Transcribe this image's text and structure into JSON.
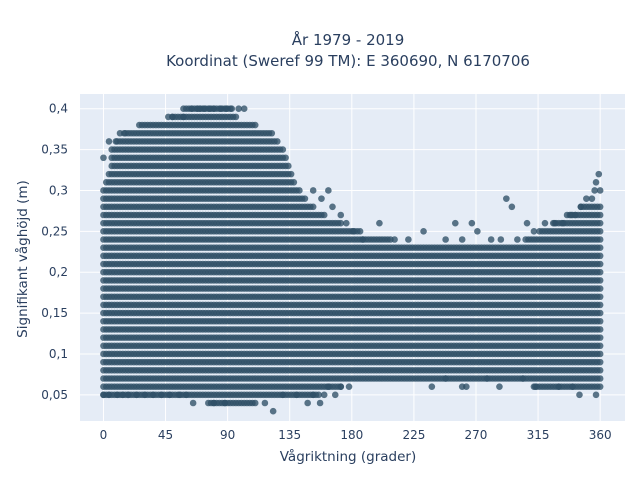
{
  "chart_data": {
    "type": "scatter",
    "title_line1": "År 1979 - 2019",
    "title_line2": "Koordinat (Sweref 99 TM): E 360690, N 6170706",
    "xlabel": "Vågriktning (grader)",
    "ylabel": "Signifikant våghöjd (m)",
    "xlim": [
      -17,
      378
    ],
    "ylim": [
      0.018,
      0.418
    ],
    "x_ticks": [
      0,
      45,
      90,
      135,
      180,
      225,
      270,
      315,
      360
    ],
    "x_tick_labels": [
      "0",
      "45",
      "90",
      "135",
      "180",
      "225",
      "270",
      "315",
      "360"
    ],
    "y_ticks": [
      0.05,
      0.1,
      0.15,
      0.2,
      0.25,
      0.3,
      0.35,
      0.4
    ],
    "y_tick_labels": [
      "0,05",
      "0,1",
      "0,15",
      "0,2",
      "0,25",
      "0,3",
      "0,35",
      "0,4"
    ],
    "grid": true,
    "marker_color": "#2f4f66",
    "plot_bg": "#e5ecf6",
    "x_step": 2,
    "y_step": 0.01,
    "envelope": [
      {
        "x": 0,
        "ymin": 0.05,
        "ymax": 0.3
      },
      {
        "x": 10,
        "ymin": 0.05,
        "ymax": 0.36
      },
      {
        "x": 20,
        "ymin": 0.05,
        "ymax": 0.37
      },
      {
        "x": 30,
        "ymin": 0.05,
        "ymax": 0.38
      },
      {
        "x": 45,
        "ymin": 0.05,
        "ymax": 0.38
      },
      {
        "x": 55,
        "ymin": 0.05,
        "ymax": 0.39
      },
      {
        "x": 60,
        "ymin": 0.05,
        "ymax": 0.4
      },
      {
        "x": 90,
        "ymin": 0.04,
        "ymax": 0.4
      },
      {
        "x": 100,
        "ymin": 0.04,
        "ymax": 0.38
      },
      {
        "x": 120,
        "ymin": 0.05,
        "ymax": 0.37
      },
      {
        "x": 130,
        "ymin": 0.05,
        "ymax": 0.35
      },
      {
        "x": 140,
        "ymin": 0.05,
        "ymax": 0.3
      },
      {
        "x": 150,
        "ymin": 0.05,
        "ymax": 0.28
      },
      {
        "x": 165,
        "ymin": 0.06,
        "ymax": 0.26
      },
      {
        "x": 180,
        "ymin": 0.07,
        "ymax": 0.25
      },
      {
        "x": 195,
        "ymin": 0.07,
        "ymax": 0.24
      },
      {
        "x": 225,
        "ymin": 0.07,
        "ymax": 0.23
      },
      {
        "x": 270,
        "ymin": 0.07,
        "ymax": 0.23
      },
      {
        "x": 300,
        "ymin": 0.07,
        "ymax": 0.23
      },
      {
        "x": 320,
        "ymin": 0.06,
        "ymax": 0.25
      },
      {
        "x": 340,
        "ymin": 0.06,
        "ymax": 0.27
      },
      {
        "x": 350,
        "ymin": 0.06,
        "ymax": 0.28
      },
      {
        "x": 360,
        "ymin": 0.06,
        "ymax": 0.28
      }
    ],
    "outliers": [
      [
        64,
        0.4
      ],
      [
        68,
        0.4
      ],
      [
        70,
        0.4
      ],
      [
        73,
        0.4
      ],
      [
        77,
        0.4
      ],
      [
        80,
        0.4
      ],
      [
        85,
        0.4
      ],
      [
        89,
        0.4
      ],
      [
        93,
        0.4
      ],
      [
        98,
        0.4
      ],
      [
        102,
        0.4
      ],
      [
        47,
        0.39
      ],
      [
        50,
        0.39
      ],
      [
        58,
        0.39
      ],
      [
        0,
        0.34
      ],
      [
        4,
        0.36
      ],
      [
        6,
        0.35
      ],
      [
        12,
        0.37
      ],
      [
        9,
        0.36
      ],
      [
        15,
        0.37
      ],
      [
        65,
        0.04
      ],
      [
        80,
        0.04
      ],
      [
        88,
        0.04
      ],
      [
        110,
        0.04
      ],
      [
        117,
        0.04
      ],
      [
        123,
        0.03
      ],
      [
        148,
        0.04
      ],
      [
        157,
        0.04
      ],
      [
        0,
        0.05
      ],
      [
        4,
        0.05
      ],
      [
        10,
        0.05
      ],
      [
        14,
        0.05
      ],
      [
        18,
        0.05
      ],
      [
        24,
        0.05
      ],
      [
        30,
        0.05
      ],
      [
        36,
        0.05
      ],
      [
        42,
        0.05
      ],
      [
        48,
        0.05
      ],
      [
        55,
        0.05
      ],
      [
        60,
        0.05
      ],
      [
        130,
        0.05
      ],
      [
        140,
        0.05
      ],
      [
        152,
        0.05
      ],
      [
        160,
        0.05
      ],
      [
        168,
        0.05
      ],
      [
        163,
        0.06
      ],
      [
        172,
        0.06
      ],
      [
        178,
        0.06
      ],
      [
        260,
        0.06
      ],
      [
        287,
        0.06
      ],
      [
        313,
        0.06
      ],
      [
        330,
        0.06
      ],
      [
        340,
        0.06
      ],
      [
        345,
        0.05
      ],
      [
        357,
        0.05
      ],
      [
        238,
        0.06
      ],
      [
        248,
        0.07
      ],
      [
        263,
        0.06
      ],
      [
        278,
        0.07
      ],
      [
        304,
        0.07
      ],
      [
        152,
        0.3
      ],
      [
        158,
        0.29
      ],
      [
        163,
        0.3
      ],
      [
        166,
        0.28
      ],
      [
        172,
        0.27
      ],
      [
        176,
        0.26
      ],
      [
        181,
        0.25
      ],
      [
        188,
        0.24
      ],
      [
        200,
        0.26
      ],
      [
        211,
        0.24
      ],
      [
        221,
        0.24
      ],
      [
        232,
        0.25
      ],
      [
        248,
        0.24
      ],
      [
        255,
        0.26
      ],
      [
        260,
        0.24
      ],
      [
        267,
        0.26
      ],
      [
        271,
        0.25
      ],
      [
        281,
        0.24
      ],
      [
        288,
        0.24
      ],
      [
        292,
        0.29
      ],
      [
        296,
        0.28
      ],
      [
        300,
        0.24
      ],
      [
        307,
        0.26
      ],
      [
        312,
        0.25
      ],
      [
        320,
        0.26
      ],
      [
        327,
        0.26
      ],
      [
        333,
        0.26
      ],
      [
        339,
        0.27
      ],
      [
        342,
        0.27
      ],
      [
        346,
        0.28
      ],
      [
        350,
        0.29
      ],
      [
        354,
        0.29
      ],
      [
        356,
        0.3
      ],
      [
        357,
        0.31
      ],
      [
        359,
        0.32
      ],
      [
        360,
        0.3
      ]
    ]
  }
}
